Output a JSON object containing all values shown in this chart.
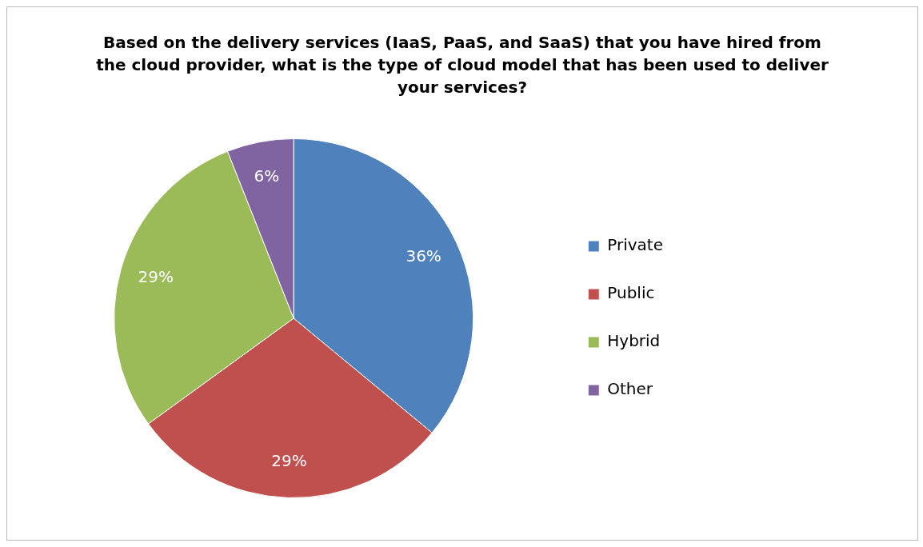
{
  "chart_data": {
    "type": "pie",
    "title": "Based on the delivery services (IaaS, PaaS, and SaaS) that you have hired from the cloud provider, what is the type of cloud model that has been used to deliver your services?",
    "categories": [
      "Private",
      "Public",
      "Hybrid",
      "Other"
    ],
    "values": [
      36,
      29,
      29,
      6
    ],
    "colors": [
      "#4f81bd",
      "#c0504d",
      "#9bbb59",
      "#8064a2"
    ],
    "value_labels": [
      "36%",
      "29%",
      "29%",
      "6%"
    ],
    "legend": "right"
  }
}
